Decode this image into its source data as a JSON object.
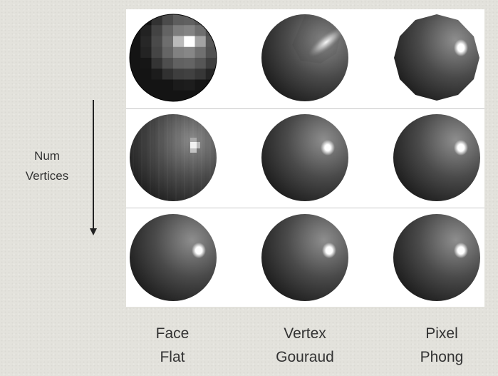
{
  "row_axis": {
    "line1": "Num",
    "line2": "Vertices"
  },
  "columns": [
    {
      "line1": "Face",
      "line2": "Flat"
    },
    {
      "line1": "Vertex",
      "line2": "Gouraud"
    },
    {
      "line1": "Pixel",
      "line2": "Phong"
    }
  ],
  "rows": [
    [
      "faceted-low-poly-sphere",
      "gouraud-low-poly-sphere",
      "phong-low-poly-sphere"
    ],
    [
      "faceted-mid-poly-sphere",
      "gouraud-mid-poly-sphere",
      "phong-mid-poly-sphere"
    ],
    [
      "faceted-high-poly-sphere",
      "gouraud-high-poly-sphere",
      "phong-high-poly-sphere"
    ]
  ],
  "colors": {
    "background": "#e3e2dc",
    "panel": "#ffffff",
    "sphere_dark": "#101010",
    "sphere_mid": "#5a5a5a",
    "highlight": "#ffffff"
  }
}
